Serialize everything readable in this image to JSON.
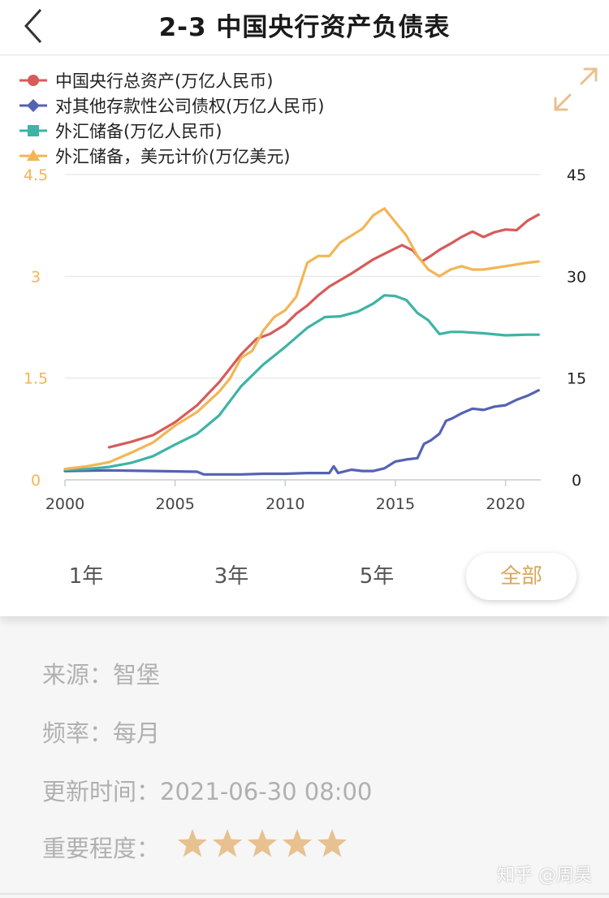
{
  "header": {
    "title": "2-3 中国央行资产负债表"
  },
  "legend": [
    {
      "label": "中国央行总资产(万亿人民币)",
      "color": "#d75b5b",
      "marker": "circle"
    },
    {
      "label": "对其他存款性公司债权(万亿人民币)",
      "color": "#5562b3",
      "marker": "diamond"
    },
    {
      "label": "外汇储备(万亿人民币)",
      "color": "#3fb3a5",
      "marker": "square"
    },
    {
      "label": "外汇储备，美元计价(万亿美元)",
      "color": "#f2b655",
      "marker": "triangle"
    }
  ],
  "chart_data": {
    "type": "line",
    "x_ticks": [
      "2000",
      "2005",
      "2010",
      "2015",
      "2020"
    ],
    "xlim": [
      2000,
      2021.6
    ],
    "left_axis": {
      "ticks": [
        "0",
        "1.5",
        "3",
        "4.5"
      ],
      "ylim": [
        0,
        4.5
      ],
      "color": "#f2b655"
    },
    "right_axis": {
      "ticks": [
        "0",
        "15",
        "30",
        "45"
      ],
      "ylim": [
        0,
        45
      ],
      "color": "#222222"
    },
    "grid": true,
    "series": [
      {
        "name": "中国央行总资产(万亿人民币)",
        "color": "#d75b5b",
        "axis": "right",
        "x": [
          2002.0,
          2003.0,
          2004.0,
          2005.0,
          2006.0,
          2007.0,
          2008.0,
          2008.7,
          2009.3,
          2010.0,
          2010.5,
          2011.0,
          2011.5,
          2012.0,
          2013.0,
          2014.0,
          2014.8,
          2015.3,
          2015.8,
          2016.2,
          2016.6,
          2017.0,
          2017.5,
          2018.0,
          2018.5,
          2019.0,
          2019.5,
          2020.0,
          2020.5,
          2021.0,
          2021.5
        ],
        "values": [
          4.8,
          5.6,
          6.6,
          8.5,
          11.0,
          14.4,
          18.5,
          20.8,
          21.5,
          22.9,
          24.5,
          25.7,
          27.2,
          28.5,
          30.4,
          32.5,
          33.8,
          34.6,
          33.8,
          32.2,
          33.0,
          33.9,
          34.8,
          35.8,
          36.6,
          35.8,
          36.5,
          36.9,
          36.8,
          38.2,
          39.1
        ]
      },
      {
        "name": "对其他存款性公司债权(万亿人民币)",
        "color": "#5562b3",
        "axis": "right",
        "x": [
          2000.0,
          2002.0,
          2004.0,
          2006.0,
          2006.3,
          2008.0,
          2009.0,
          2010.0,
          2011.0,
          2012.0,
          2012.2,
          2012.4,
          2013.0,
          2013.5,
          2014.0,
          2014.5,
          2015.0,
          2015.5,
          2016.0,
          2016.3,
          2016.6,
          2017.0,
          2017.3,
          2017.6,
          2018.0,
          2018.5,
          2019.0,
          2019.5,
          2020.0,
          2020.5,
          2021.0,
          2021.5
        ],
        "values": [
          1.3,
          1.4,
          1.3,
          1.2,
          0.8,
          0.8,
          0.9,
          0.9,
          1.0,
          1.0,
          2.0,
          1.0,
          1.5,
          1.3,
          1.3,
          1.7,
          2.7,
          3.0,
          3.2,
          5.3,
          5.8,
          6.8,
          8.7,
          9.1,
          9.8,
          10.5,
          10.3,
          10.8,
          11.0,
          11.8,
          12.4,
          13.2
        ]
      },
      {
        "name": "外汇储备(万亿人民币)",
        "color": "#3fb3a5",
        "axis": "right",
        "x": [
          2000.0,
          2001.0,
          2002.0,
          2003.0,
          2004.0,
          2005.0,
          2006.0,
          2007.0,
          2008.0,
          2009.0,
          2010.0,
          2011.0,
          2011.8,
          2012.5,
          2013.3,
          2014.0,
          2014.5,
          2015.0,
          2015.5,
          2016.0,
          2016.5,
          2017.0,
          2017.5,
          2018.0,
          2019.0,
          2020.0,
          2021.0,
          2021.5
        ],
        "values": [
          1.5,
          1.6,
          1.9,
          2.5,
          3.5,
          5.2,
          6.8,
          9.5,
          13.8,
          17.0,
          19.6,
          22.4,
          24.0,
          24.1,
          24.8,
          26.0,
          27.2,
          27.1,
          26.5,
          24.6,
          23.5,
          21.5,
          21.8,
          21.8,
          21.6,
          21.3,
          21.4,
          21.4
        ]
      },
      {
        "name": "外汇储备，美元计价(万亿美元)",
        "color": "#f2b655",
        "axis": "left",
        "x": [
          2000.0,
          2001.0,
          2002.0,
          2003.0,
          2004.0,
          2005.0,
          2006.0,
          2007.0,
          2007.5,
          2008.0,
          2008.5,
          2009.0,
          2009.5,
          2010.0,
          2010.5,
          2011.0,
          2011.5,
          2012.0,
          2012.5,
          2013.0,
          2013.5,
          2014.0,
          2014.5,
          2015.0,
          2015.5,
          2016.0,
          2016.5,
          2017.0,
          2017.5,
          2018.0,
          2018.5,
          2019.0,
          2020.0,
          2021.0,
          2021.5
        ],
        "values": [
          0.16,
          0.2,
          0.26,
          0.4,
          0.55,
          0.8,
          1.0,
          1.3,
          1.5,
          1.8,
          1.9,
          2.2,
          2.4,
          2.5,
          2.7,
          3.2,
          3.3,
          3.3,
          3.5,
          3.6,
          3.7,
          3.9,
          4.0,
          3.8,
          3.6,
          3.3,
          3.1,
          3.0,
          3.1,
          3.15,
          3.1,
          3.1,
          3.15,
          3.2,
          3.22
        ]
      }
    ]
  },
  "range_tabs": [
    "1年",
    "3年",
    "5年",
    "全部"
  ],
  "active_tab": "全部",
  "meta": {
    "source_label": "来源：",
    "source_value": "智堡",
    "frequency_label": "频率：",
    "frequency_value": "每月",
    "updated_label": "更新时间：",
    "updated_value": "2021-06-30 08:00",
    "importance_label": "重要程度：",
    "importance_stars": 5,
    "importance_max": 5,
    "star_color": "#e8c190"
  },
  "watermark": "知乎 @周昊"
}
